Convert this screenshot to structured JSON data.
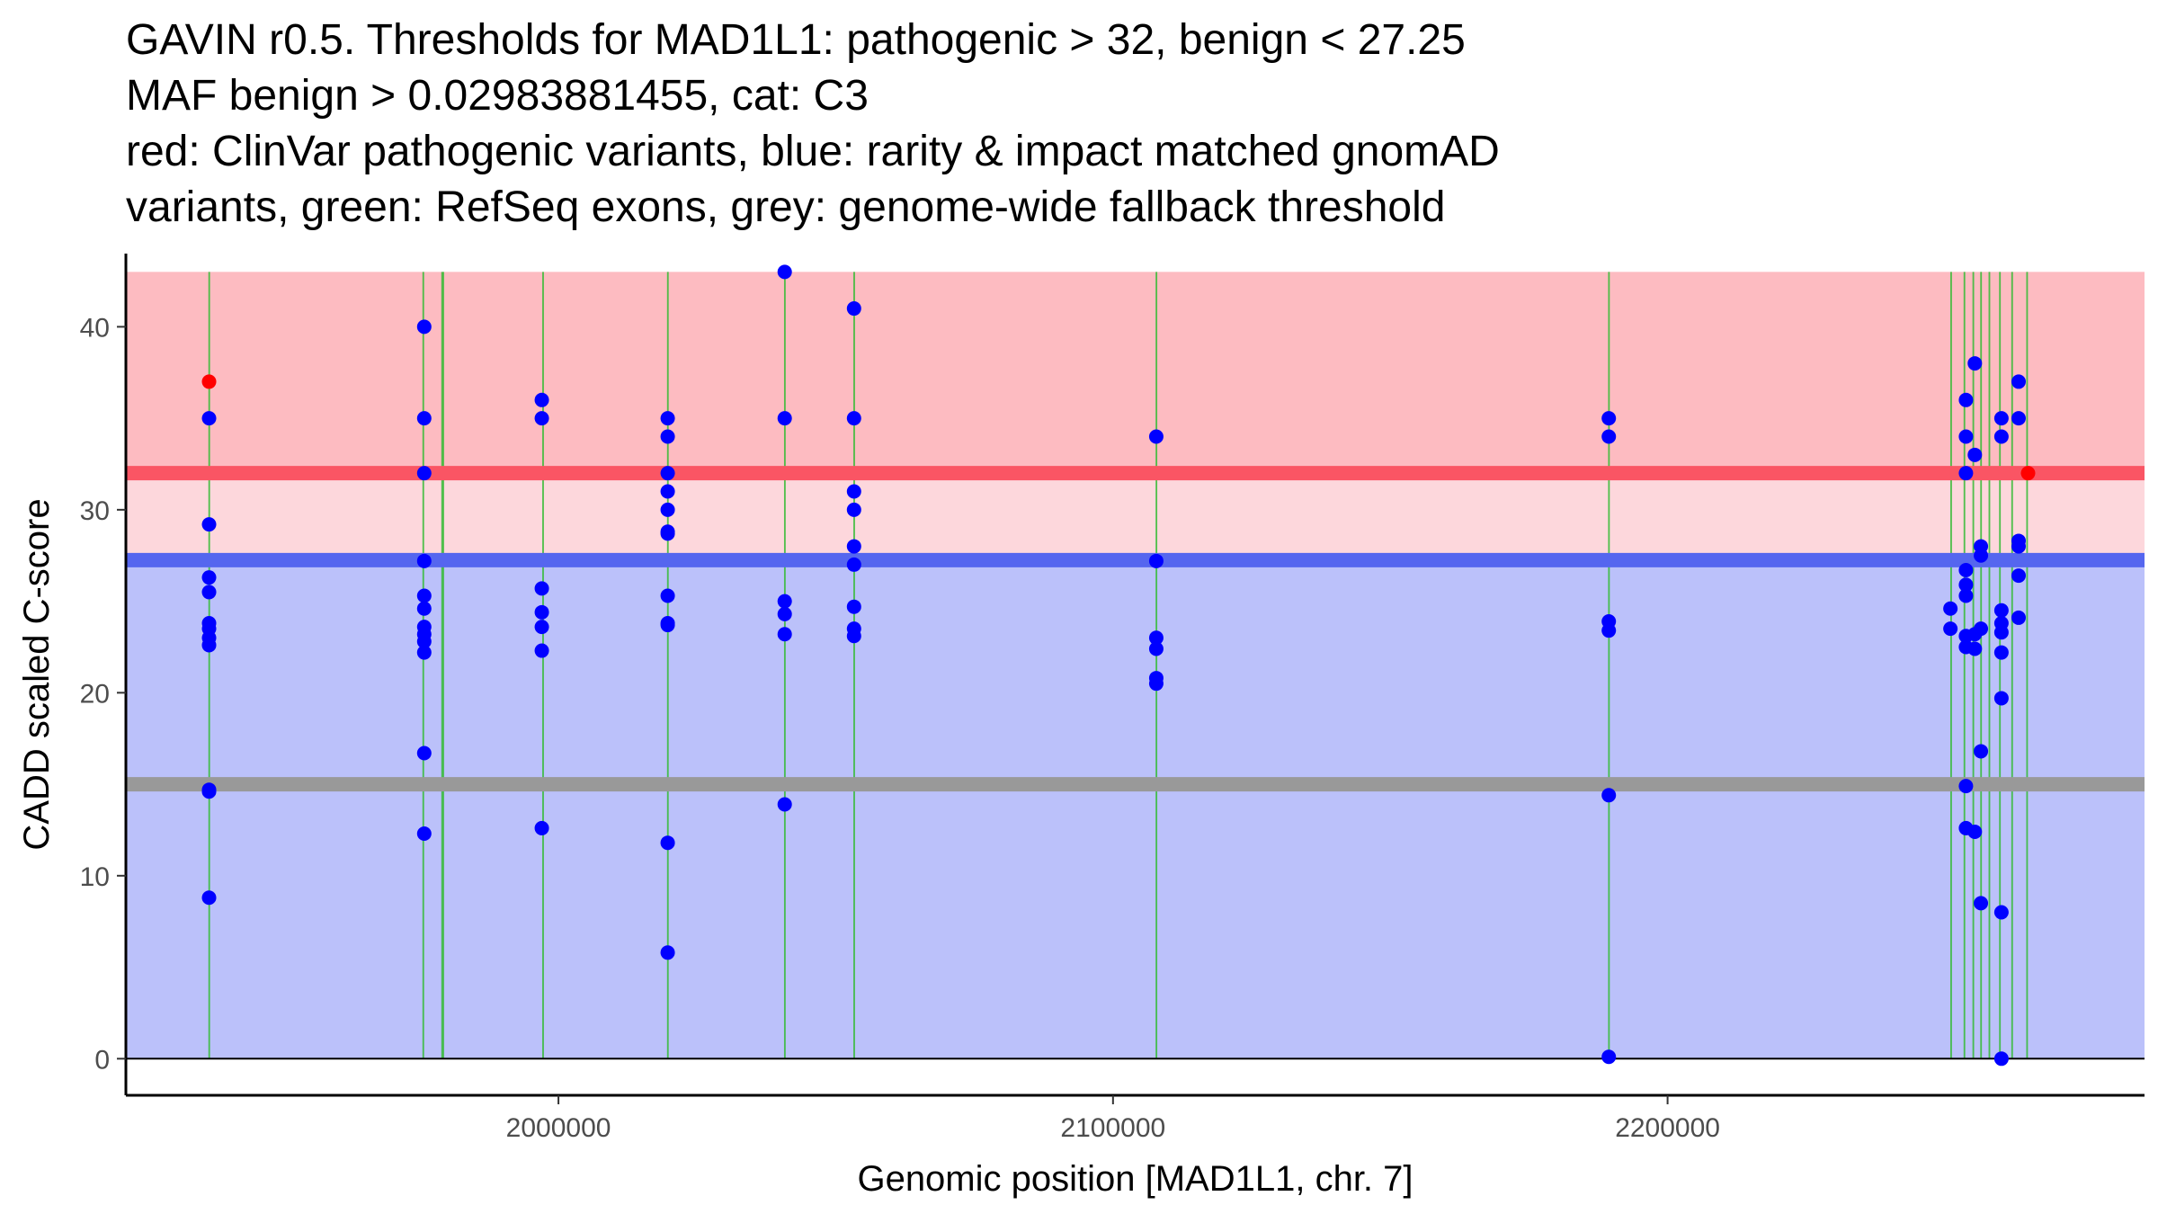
{
  "title_lines": [
    "GAVIN r0.5. Thresholds for MAD1L1: pathogenic > 32, benign < 27.25",
    "MAF benign > 0.02983881455, cat: C3",
    "red: ClinVar pathogenic variants, blue: rarity & impact matched gnomAD",
    "variants, green: RefSeq exons, grey: genome-wide fallback threshold"
  ],
  "colors": {
    "pathogenic_zone": "#fdbbc1",
    "mid_zone": "#fdd7dc",
    "benign_zone": "#bbc1fa",
    "pathogenic_line": "#fa5564",
    "benign_line": "#5566ef",
    "fallback_line": "#999999",
    "exon": "#33bb33",
    "clinvar_point": "#ff0000",
    "gnomad_point": "#0000ff"
  },
  "chart_data": {
    "type": "scatter",
    "xlabel": "Genomic position [MAD1L1, chr. 7]",
    "ylabel": "CADD scaled C-score",
    "xlim": [
      1922000,
      2286000
    ],
    "ylim": [
      -2,
      44
    ],
    "x_ticks": [
      2000000,
      2100000,
      2200000
    ],
    "y_ticks": [
      0,
      10,
      20,
      30,
      40
    ],
    "thresholds": {
      "pathogenic": 32,
      "benign": 27.25,
      "fallback": 15,
      "max": 43
    },
    "exons": [
      {
        "start": 1937000,
        "end": 1937300
      },
      {
        "start": 1975600,
        "end": 1975900
      },
      {
        "start": 1979000,
        "end": 1979500
      },
      {
        "start": 1997200,
        "end": 1997500
      },
      {
        "start": 2019700,
        "end": 2020000
      },
      {
        "start": 2040800,
        "end": 2041100
      },
      {
        "start": 2053300,
        "end": 2053600
      },
      {
        "start": 2107800,
        "end": 2108100
      },
      {
        "start": 2189400,
        "end": 2189700
      },
      {
        "start": 2251100,
        "end": 2251400
      },
      {
        "start": 2253500,
        "end": 2253800
      },
      {
        "start": 2255100,
        "end": 2255400
      },
      {
        "start": 2256500,
        "end": 2256800
      },
      {
        "start": 2258000,
        "end": 2258300
      },
      {
        "start": 2259900,
        "end": 2260200
      },
      {
        "start": 2262100,
        "end": 2262400
      },
      {
        "start": 2264800,
        "end": 2265100
      }
    ],
    "series": [
      {
        "name": "ClinVar pathogenic",
        "points": [
          [
            1937000,
            37
          ],
          [
            2265000,
            32
          ]
        ]
      },
      {
        "name": "gnomAD matched",
        "points": [
          [
            1937000,
            35
          ],
          [
            1937000,
            29.2
          ],
          [
            1937000,
            26.3
          ],
          [
            1937000,
            25.5
          ],
          [
            1937000,
            23.8
          ],
          [
            1937000,
            23.5
          ],
          [
            1937000,
            23
          ],
          [
            1937000,
            22.6
          ],
          [
            1937000,
            14.7
          ],
          [
            1937000,
            14.6
          ],
          [
            1937000,
            8.8
          ],
          [
            1975800,
            40
          ],
          [
            1975800,
            35
          ],
          [
            1975800,
            32
          ],
          [
            1975800,
            27.2
          ],
          [
            1975800,
            25.3
          ],
          [
            1975800,
            24.6
          ],
          [
            1975800,
            23.6
          ],
          [
            1975800,
            23.2
          ],
          [
            1975800,
            22.8
          ],
          [
            1975800,
            22.2
          ],
          [
            1975800,
            16.7
          ],
          [
            1975800,
            12.3
          ],
          [
            1997000,
            36
          ],
          [
            1997000,
            35
          ],
          [
            1997000,
            25.7
          ],
          [
            1997000,
            24.4
          ],
          [
            1997000,
            23.6
          ],
          [
            1997000,
            22.3
          ],
          [
            1997000,
            12.6
          ],
          [
            2019700,
            35
          ],
          [
            2019700,
            34
          ],
          [
            2019700,
            32
          ],
          [
            2019700,
            31
          ],
          [
            2019700,
            30
          ],
          [
            2019700,
            28.8
          ],
          [
            2019700,
            28.7
          ],
          [
            2019700,
            25.3
          ],
          [
            2019700,
            23.8
          ],
          [
            2019700,
            23.7
          ],
          [
            2019700,
            11.8
          ],
          [
            2019700,
            5.8
          ],
          [
            2040800,
            43
          ],
          [
            2040800,
            35
          ],
          [
            2040800,
            25
          ],
          [
            2040800,
            24.3
          ],
          [
            2040800,
            23.2
          ],
          [
            2040800,
            13.9
          ],
          [
            2053300,
            41
          ],
          [
            2053300,
            35
          ],
          [
            2053300,
            31
          ],
          [
            2053300,
            30
          ],
          [
            2053300,
            28
          ],
          [
            2053300,
            27
          ],
          [
            2053300,
            24.7
          ],
          [
            2053300,
            23.5
          ],
          [
            2053300,
            23.1
          ],
          [
            2107800,
            34
          ],
          [
            2107800,
            27.2
          ],
          [
            2107800,
            23
          ],
          [
            2107800,
            22.4
          ],
          [
            2107800,
            20.8
          ],
          [
            2107800,
            20.5
          ],
          [
            2189400,
            35
          ],
          [
            2189400,
            34
          ],
          [
            2189400,
            23.9
          ],
          [
            2189400,
            23.4
          ],
          [
            2189400,
            14.4
          ],
          [
            2189400,
            0.1
          ],
          [
            2251000,
            24.6
          ],
          [
            2251000,
            23.5
          ],
          [
            2253800,
            36
          ],
          [
            2253800,
            34
          ],
          [
            2253800,
            32
          ],
          [
            2253800,
            26.7
          ],
          [
            2253800,
            25.9
          ],
          [
            2253800,
            25.3
          ],
          [
            2253800,
            23.1
          ],
          [
            2253800,
            22.5
          ],
          [
            2253800,
            14.9
          ],
          [
            2253800,
            12.6
          ],
          [
            2255400,
            38
          ],
          [
            2255400,
            33
          ],
          [
            2255400,
            23.2
          ],
          [
            2255400,
            22.4
          ],
          [
            2255400,
            12.4
          ],
          [
            2256500,
            28
          ],
          [
            2256500,
            27.5
          ],
          [
            2256500,
            23.5
          ],
          [
            2256500,
            16.8
          ],
          [
            2256500,
            8.5
          ],
          [
            2260200,
            35
          ],
          [
            2260200,
            34
          ],
          [
            2260200,
            24.5
          ],
          [
            2260200,
            23.8
          ],
          [
            2260200,
            23.3
          ],
          [
            2260200,
            22.2
          ],
          [
            2260200,
            19.7
          ],
          [
            2260200,
            8
          ],
          [
            2260200,
            0
          ],
          [
            2263300,
            37
          ],
          [
            2263300,
            35
          ],
          [
            2263300,
            28.3
          ],
          [
            2263300,
            28
          ],
          [
            2263300,
            26.4
          ],
          [
            2263300,
            24.1
          ]
        ]
      }
    ]
  }
}
